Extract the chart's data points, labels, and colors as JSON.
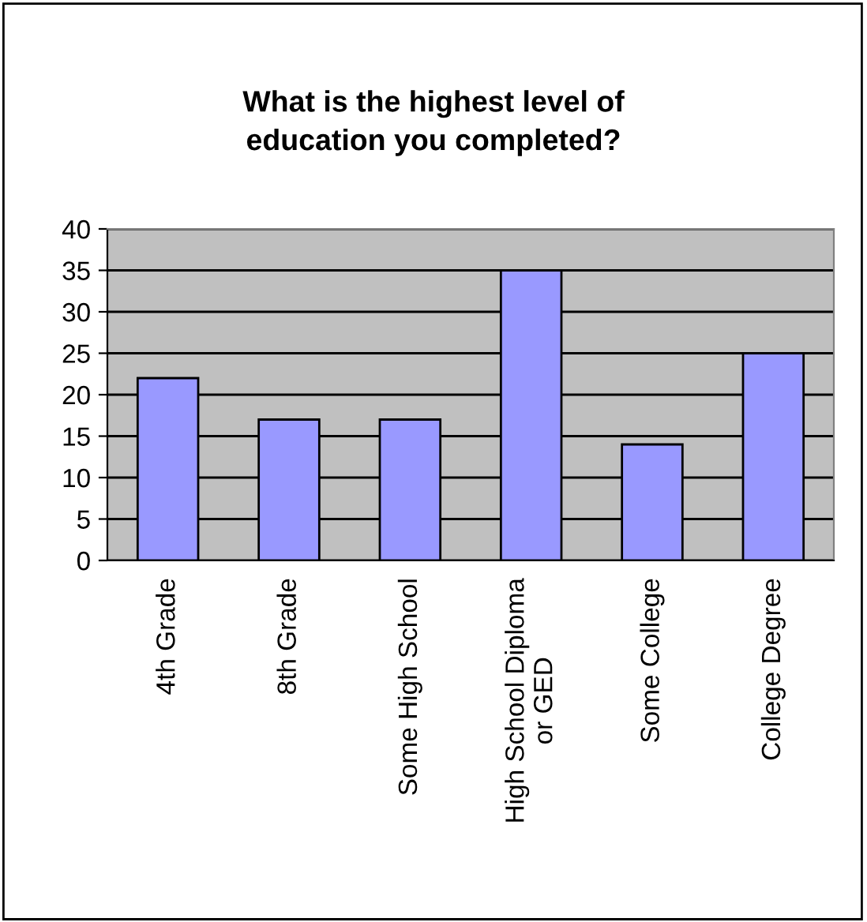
{
  "chart_data": {
    "type": "bar",
    "title": "What is the highest level of\neducation you completed?",
    "categories": [
      "4th Grade",
      "8th Grade",
      "Some High School",
      "High School Diploma\nor GED",
      "Some College",
      "College Degree"
    ],
    "values": [
      22,
      17,
      17,
      35,
      14,
      25
    ],
    "color": "#9999ff",
    "ylim": [
      0,
      40
    ],
    "yticks": [
      0,
      5,
      10,
      15,
      20,
      25,
      30,
      35,
      40
    ],
    "grid": "y"
  }
}
